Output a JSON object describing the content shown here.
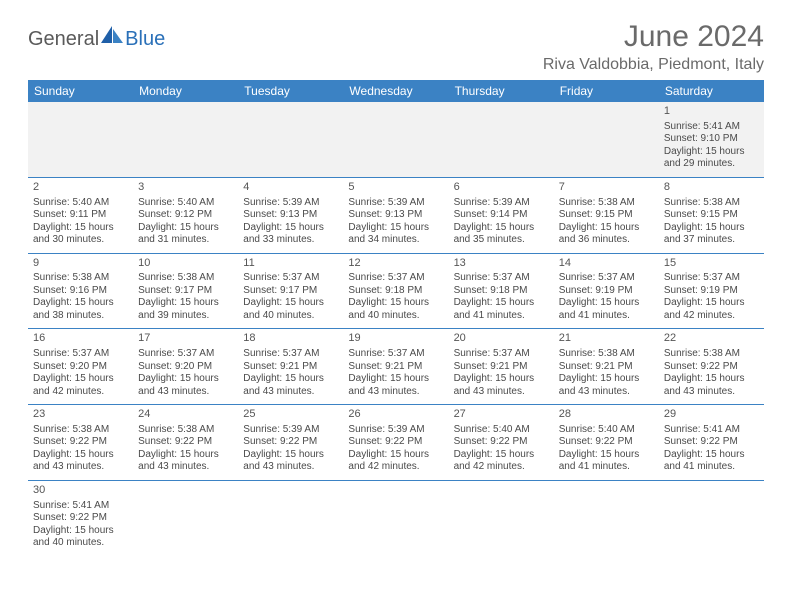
{
  "brand": {
    "part1": "General",
    "part2": "Blue"
  },
  "title": "June 2024",
  "location": "Riva Valdobbia, Piedmont, Italy",
  "colors": {
    "header_bg": "#3b82c4",
    "header_text": "#ffffff",
    "rule": "#3b82c4",
    "text": "#4a4a4a",
    "title": "#6a6a6a",
    "first_row_bg": "#f2f2f2"
  },
  "weekdays": [
    "Sunday",
    "Monday",
    "Tuesday",
    "Wednesday",
    "Thursday",
    "Friday",
    "Saturday"
  ],
  "weeks": [
    [
      null,
      null,
      null,
      null,
      null,
      null,
      {
        "d": "1",
        "rise": "5:41 AM",
        "set": "9:10 PM",
        "day": "15 hours and 29 minutes."
      }
    ],
    [
      {
        "d": "2",
        "rise": "5:40 AM",
        "set": "9:11 PM",
        "day": "15 hours and 30 minutes."
      },
      {
        "d": "3",
        "rise": "5:40 AM",
        "set": "9:12 PM",
        "day": "15 hours and 31 minutes."
      },
      {
        "d": "4",
        "rise": "5:39 AM",
        "set": "9:13 PM",
        "day": "15 hours and 33 minutes."
      },
      {
        "d": "5",
        "rise": "5:39 AM",
        "set": "9:13 PM",
        "day": "15 hours and 34 minutes."
      },
      {
        "d": "6",
        "rise": "5:39 AM",
        "set": "9:14 PM",
        "day": "15 hours and 35 minutes."
      },
      {
        "d": "7",
        "rise": "5:38 AM",
        "set": "9:15 PM",
        "day": "15 hours and 36 minutes."
      },
      {
        "d": "8",
        "rise": "5:38 AM",
        "set": "9:15 PM",
        "day": "15 hours and 37 minutes."
      }
    ],
    [
      {
        "d": "9",
        "rise": "5:38 AM",
        "set": "9:16 PM",
        "day": "15 hours and 38 minutes."
      },
      {
        "d": "10",
        "rise": "5:38 AM",
        "set": "9:17 PM",
        "day": "15 hours and 39 minutes."
      },
      {
        "d": "11",
        "rise": "5:37 AM",
        "set": "9:17 PM",
        "day": "15 hours and 40 minutes."
      },
      {
        "d": "12",
        "rise": "5:37 AM",
        "set": "9:18 PM",
        "day": "15 hours and 40 minutes."
      },
      {
        "d": "13",
        "rise": "5:37 AM",
        "set": "9:18 PM",
        "day": "15 hours and 41 minutes."
      },
      {
        "d": "14",
        "rise": "5:37 AM",
        "set": "9:19 PM",
        "day": "15 hours and 41 minutes."
      },
      {
        "d": "15",
        "rise": "5:37 AM",
        "set": "9:19 PM",
        "day": "15 hours and 42 minutes."
      }
    ],
    [
      {
        "d": "16",
        "rise": "5:37 AM",
        "set": "9:20 PM",
        "day": "15 hours and 42 minutes."
      },
      {
        "d": "17",
        "rise": "5:37 AM",
        "set": "9:20 PM",
        "day": "15 hours and 43 minutes."
      },
      {
        "d": "18",
        "rise": "5:37 AM",
        "set": "9:21 PM",
        "day": "15 hours and 43 minutes."
      },
      {
        "d": "19",
        "rise": "5:37 AM",
        "set": "9:21 PM",
        "day": "15 hours and 43 minutes."
      },
      {
        "d": "20",
        "rise": "5:37 AM",
        "set": "9:21 PM",
        "day": "15 hours and 43 minutes."
      },
      {
        "d": "21",
        "rise": "5:38 AM",
        "set": "9:21 PM",
        "day": "15 hours and 43 minutes."
      },
      {
        "d": "22",
        "rise": "5:38 AM",
        "set": "9:22 PM",
        "day": "15 hours and 43 minutes."
      }
    ],
    [
      {
        "d": "23",
        "rise": "5:38 AM",
        "set": "9:22 PM",
        "day": "15 hours and 43 minutes."
      },
      {
        "d": "24",
        "rise": "5:38 AM",
        "set": "9:22 PM",
        "day": "15 hours and 43 minutes."
      },
      {
        "d": "25",
        "rise": "5:39 AM",
        "set": "9:22 PM",
        "day": "15 hours and 43 minutes."
      },
      {
        "d": "26",
        "rise": "5:39 AM",
        "set": "9:22 PM",
        "day": "15 hours and 42 minutes."
      },
      {
        "d": "27",
        "rise": "5:40 AM",
        "set": "9:22 PM",
        "day": "15 hours and 42 minutes."
      },
      {
        "d": "28",
        "rise": "5:40 AM",
        "set": "9:22 PM",
        "day": "15 hours and 41 minutes."
      },
      {
        "d": "29",
        "rise": "5:41 AM",
        "set": "9:22 PM",
        "day": "15 hours and 41 minutes."
      }
    ],
    [
      {
        "d": "30",
        "rise": "5:41 AM",
        "set": "9:22 PM",
        "day": "15 hours and 40 minutes."
      },
      null,
      null,
      null,
      null,
      null,
      null
    ]
  ],
  "labels": {
    "sunrise": "Sunrise:",
    "sunset": "Sunset:",
    "daylight": "Daylight:"
  }
}
